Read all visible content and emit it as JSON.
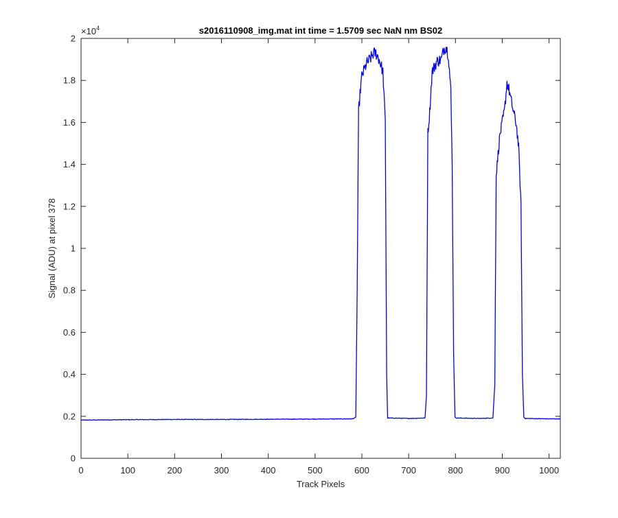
{
  "chart_data": {
    "type": "line",
    "title": "s2016110908_img.mat int time = 1.5709 sec  NaN nm BS02",
    "xlabel": "Track Pixels",
    "ylabel": "Signal (ADU) at pixel 378",
    "xlim": [
      0,
      1024
    ],
    "ylim": [
      0,
      20000
    ],
    "xticks": [
      0,
      100,
      200,
      300,
      400,
      500,
      600,
      700,
      800,
      900,
      1000
    ],
    "xtick_labels": [
      "0",
      "100",
      "200",
      "300",
      "400",
      "500",
      "600",
      "700",
      "800",
      "900",
      "1000"
    ],
    "yticks": [
      0,
      2000,
      4000,
      6000,
      8000,
      10000,
      12000,
      14000,
      16000,
      18000,
      20000
    ],
    "ytick_labels": [
      "0",
      "0.2",
      "0.4",
      "0.6",
      "0.8",
      "1",
      "1.2",
      "1.4",
      "1.6",
      "1.8",
      "2"
    ],
    "y_exponent_base": "×10",
    "y_exponent_power": "4",
    "grid": false,
    "line_color": "#0000ff",
    "series": [
      {
        "x": [
          0,
          100,
          200,
          300,
          400,
          500,
          580,
          587,
          590,
          593,
          597,
          600,
          610,
          620,
          625,
          630,
          635,
          640,
          645,
          650,
          653,
          655,
          700,
          735,
          738,
          741,
          745,
          750,
          760,
          770,
          775,
          780,
          785,
          790,
          793,
          796,
          799,
          802,
          850,
          880,
          884,
          887,
          891,
          895,
          900,
          905,
          910,
          915,
          920,
          925,
          930,
          935,
          940,
          943,
          946,
          949,
          1000,
          1024
        ],
        "y": [
          1820,
          1840,
          1850,
          1850,
          1860,
          1870,
          1880,
          1950,
          8000,
          16500,
          17600,
          18200,
          18800,
          19100,
          19300,
          19300,
          19100,
          18800,
          18400,
          16000,
          4000,
          1920,
          1900,
          1920,
          3000,
          15500,
          16500,
          18400,
          18900,
          19000,
          19500,
          19600,
          19200,
          17500,
          14000,
          5000,
          1950,
          1920,
          1900,
          1920,
          3500,
          13500,
          14500,
          15400,
          16000,
          16600,
          17900,
          17500,
          16900,
          16400,
          15900,
          14800,
          12000,
          4000,
          1960,
          1900,
          1880,
          1880
        ]
      }
    ]
  }
}
